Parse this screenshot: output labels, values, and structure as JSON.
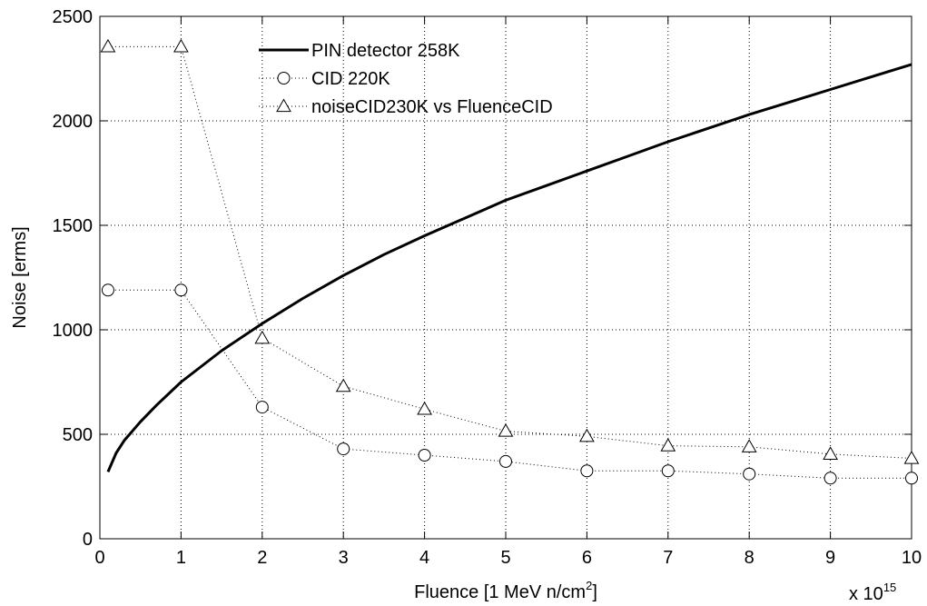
{
  "chart_data": {
    "type": "line",
    "title": "",
    "xlabel": "Fluence [1 MeV n/cm",
    "xlabel_sup": "2",
    "xlabel_end": "]",
    "ylabel": "Noise [erms]",
    "x_multiplier_base": "x 10",
    "x_multiplier_exp": "15",
    "xlim": [
      0,
      10
    ],
    "ylim": [
      0,
      2500
    ],
    "xticks": [
      0,
      1,
      2,
      3,
      4,
      5,
      6,
      7,
      8,
      9,
      10
    ],
    "yticks": [
      0,
      500,
      1000,
      1500,
      2000,
      2500
    ],
    "grid": true,
    "legend_position": "top-left",
    "series": [
      {
        "name": "PIN detector 258K",
        "style": "solid",
        "marker": "none",
        "color": "#000000",
        "x": [
          0.1,
          0.2,
          0.3,
          0.5,
          0.7,
          1,
          1.5,
          2,
          2.5,
          3,
          3.5,
          4,
          4.5,
          5,
          5.5,
          6,
          6.5,
          7,
          7.5,
          8,
          8.5,
          9,
          9.5,
          10
        ],
        "y": [
          320,
          410,
          470,
          560,
          640,
          750,
          900,
          1030,
          1150,
          1260,
          1360,
          1450,
          1535,
          1620,
          1690,
          1760,
          1830,
          1900,
          1965,
          2030,
          2090,
          2150,
          2210,
          2270
        ]
      },
      {
        "name": "CID 220K",
        "style": "dotted",
        "marker": "circle",
        "color": "#000000",
        "x": [
          0.1,
          1,
          2,
          3,
          4,
          5,
          6,
          7,
          8,
          9,
          10
        ],
        "y": [
          1190,
          1190,
          630,
          430,
          400,
          370,
          325,
          325,
          310,
          290,
          290
        ]
      },
      {
        "name": "noiseCID230K vs FluenceCID",
        "style": "dotted",
        "marker": "triangle",
        "color": "#000000",
        "x": [
          0.1,
          1,
          2,
          3,
          4,
          5,
          6,
          7,
          8,
          9,
          10
        ],
        "y": [
          2355,
          2355,
          960,
          730,
          620,
          515,
          490,
          445,
          440,
          405,
          385
        ]
      }
    ]
  }
}
